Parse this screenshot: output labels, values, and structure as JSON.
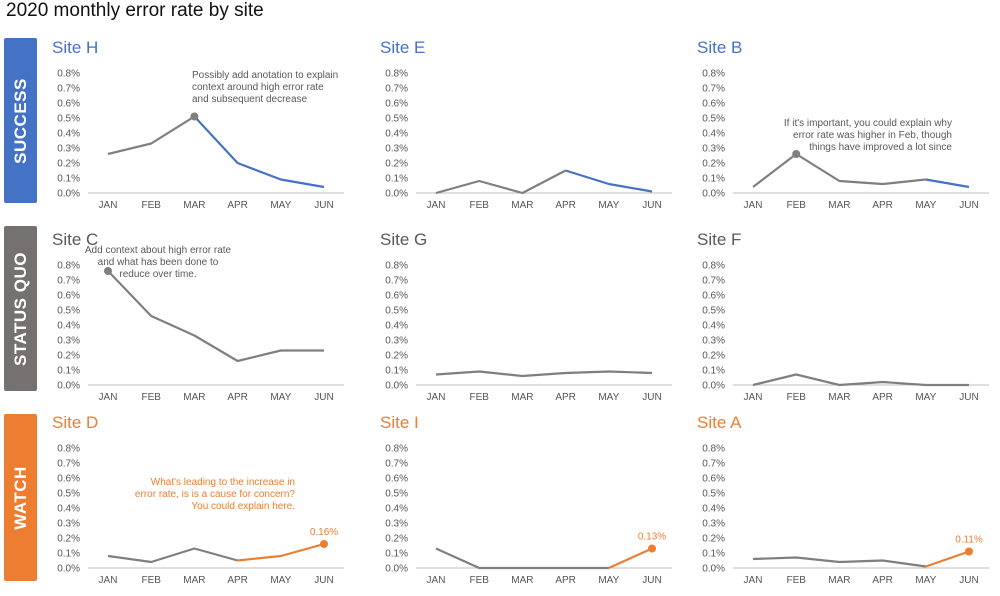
{
  "title": "2020 monthly error rate by site",
  "colors": {
    "success": "#4472C4",
    "status_quo": "#767171",
    "watch": "#ED7D31",
    "line_gray": "#7F7F7F",
    "annotation_gray": "#595959"
  },
  "rows": [
    {
      "label": "SUCCESS",
      "color": "#4472C4"
    },
    {
      "label": "STATUS QUO",
      "color": "#767171"
    },
    {
      "label": "WATCH",
      "color": "#ED7D31"
    }
  ],
  "chart_data": [
    {
      "type": "line",
      "title": "Site H",
      "title_color": "#4472C4",
      "categories": [
        "JAN",
        "FEB",
        "MAR",
        "APR",
        "MAY",
        "JUN"
      ],
      "values": [
        0.26,
        0.33,
        0.51,
        0.2,
        0.09,
        0.04
      ],
      "highlight_from": 2,
      "highlight_color": "#4472C4",
      "marker_index": 2,
      "yticks": [
        "0.0%",
        "0.1%",
        "0.2%",
        "0.3%",
        "0.4%",
        "0.5%",
        "0.6%",
        "0.7%",
        "0.8%"
      ],
      "ylim": [
        0,
        0.8
      ],
      "annotation": {
        "lines": [
          "Possibly add anotation to explain",
          "context around high error rate",
          "and subsequent decrease"
        ],
        "color": "#595959",
        "anchor": "start"
      }
    },
    {
      "type": "line",
      "title": "Site E",
      "title_color": "#4472C4",
      "categories": [
        "JAN",
        "FEB",
        "MAR",
        "APR",
        "MAY",
        "JUN"
      ],
      "values": [
        0.0,
        0.08,
        0.0,
        0.15,
        0.06,
        0.01
      ],
      "highlight_from": 3,
      "highlight_color": "#4472C4",
      "yticks": [
        "0.0%",
        "0.1%",
        "0.2%",
        "0.3%",
        "0.4%",
        "0.5%",
        "0.6%",
        "0.7%",
        "0.8%"
      ],
      "ylim": [
        0,
        0.8
      ]
    },
    {
      "type": "line",
      "title": "Site B",
      "title_color": "#4472C4",
      "categories": [
        "JAN",
        "FEB",
        "MAR",
        "APR",
        "MAY",
        "JUN"
      ],
      "values": [
        0.04,
        0.26,
        0.08,
        0.06,
        0.09,
        0.04
      ],
      "highlight_from": 4,
      "highlight_color": "#4472C4",
      "marker_index": 1,
      "yticks": [
        "0.0%",
        "0.1%",
        "0.2%",
        "0.3%",
        "0.4%",
        "0.5%",
        "0.6%",
        "0.7%",
        "0.8%"
      ],
      "ylim": [
        0,
        0.8
      ],
      "annotation": {
        "lines": [
          "If it's important, you could explain why",
          "error rate was higher in Feb, though",
          "things have improved a lot since"
        ],
        "color": "#595959",
        "anchor": "end"
      }
    },
    {
      "type": "line",
      "title": "Site C",
      "title_color": "#595959",
      "categories": [
        "JAN",
        "FEB",
        "MAR",
        "APR",
        "MAY",
        "JUN"
      ],
      "values": [
        0.76,
        0.46,
        0.33,
        0.16,
        0.23,
        0.23
      ],
      "marker_index": 0,
      "yticks": [
        "0.0%",
        "0.1%",
        "0.2%",
        "0.3%",
        "0.4%",
        "0.5%",
        "0.6%",
        "0.7%",
        "0.8%"
      ],
      "ylim": [
        0,
        0.8
      ],
      "annotation": {
        "lines": [
          "Add context about high error rate",
          "and what has been done to",
          "reduce over time."
        ],
        "color": "#595959",
        "anchor": "middle"
      }
    },
    {
      "type": "line",
      "title": "Site G",
      "title_color": "#595959",
      "categories": [
        "JAN",
        "FEB",
        "MAR",
        "APR",
        "MAY",
        "JUN"
      ],
      "values": [
        0.07,
        0.09,
        0.06,
        0.08,
        0.09,
        0.08
      ],
      "yticks": [
        "0.0%",
        "0.1%",
        "0.2%",
        "0.3%",
        "0.4%",
        "0.5%",
        "0.6%",
        "0.7%",
        "0.8%"
      ],
      "ylim": [
        0,
        0.8
      ]
    },
    {
      "type": "line",
      "title": "Site F",
      "title_color": "#595959",
      "categories": [
        "JAN",
        "FEB",
        "MAR",
        "APR",
        "MAY",
        "JUN"
      ],
      "values": [
        0.0,
        0.07,
        0.0,
        0.02,
        0.0,
        0.0
      ],
      "yticks": [
        "0.0%",
        "0.1%",
        "0.2%",
        "0.3%",
        "0.4%",
        "0.5%",
        "0.6%",
        "0.7%",
        "0.8%"
      ],
      "ylim": [
        0,
        0.8
      ]
    },
    {
      "type": "line",
      "title": "Site D",
      "title_color": "#ED7D31",
      "categories": [
        "JAN",
        "FEB",
        "MAR",
        "APR",
        "MAY",
        "JUN"
      ],
      "values": [
        0.08,
        0.04,
        0.13,
        0.05,
        0.08,
        0.16
      ],
      "highlight_from": 3,
      "highlight_color": "#ED7D31",
      "marker_index": 5,
      "value_label": "0.16%",
      "yticks": [
        "0.0%",
        "0.1%",
        "0.2%",
        "0.3%",
        "0.4%",
        "0.5%",
        "0.6%",
        "0.7%",
        "0.8%"
      ],
      "ylim": [
        0,
        0.8
      ],
      "annotation": {
        "lines": [
          "What's leading to the increase in",
          "error rate, is is a cause for concern?",
          "You could explain here."
        ],
        "color": "#ED7D31",
        "anchor": "end"
      }
    },
    {
      "type": "line",
      "title": "Site I",
      "title_color": "#ED7D31",
      "categories": [
        "JAN",
        "FEB",
        "MAR",
        "APR",
        "MAY",
        "JUN"
      ],
      "values": [
        0.13,
        0.0,
        0.0,
        0.0,
        0.0,
        0.13
      ],
      "highlight_from": 4,
      "highlight_color": "#ED7D31",
      "marker_index": 5,
      "value_label": "0.13%",
      "yticks": [
        "0.0%",
        "0.1%",
        "0.2%",
        "0.3%",
        "0.4%",
        "0.5%",
        "0.6%",
        "0.7%",
        "0.8%"
      ],
      "ylim": [
        0,
        0.8
      ]
    },
    {
      "type": "line",
      "title": "Site A",
      "title_color": "#ED7D31",
      "categories": [
        "JAN",
        "FEB",
        "MAR",
        "APR",
        "MAY",
        "JUN"
      ],
      "values": [
        0.06,
        0.07,
        0.04,
        0.05,
        0.01,
        0.11
      ],
      "highlight_from": 4,
      "highlight_color": "#ED7D31",
      "marker_index": 5,
      "value_label": "0.11%",
      "yticks": [
        "0.0%",
        "0.1%",
        "0.2%",
        "0.3%",
        "0.4%",
        "0.5%",
        "0.6%",
        "0.7%",
        "0.8%"
      ],
      "ylim": [
        0,
        0.8
      ]
    }
  ]
}
